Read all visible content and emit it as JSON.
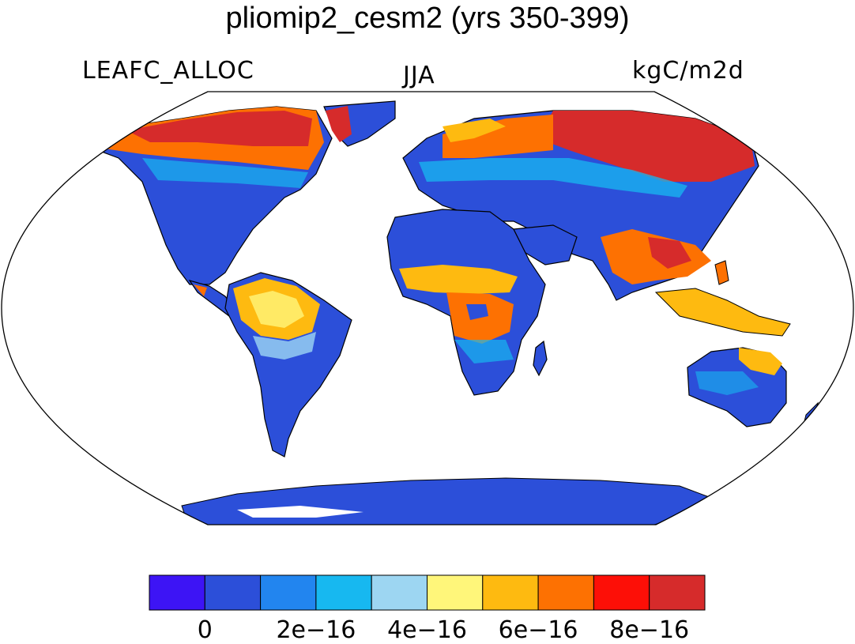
{
  "title": "pliomip2_cesm2 (yrs 350-399)",
  "subtitle_left": "LEAFC_ALLOC",
  "subtitle_center": "JJA",
  "subtitle_right": "kgC/m2d",
  "colorbar": {
    "colors": [
      "#3d14f5",
      "#2c4fd9",
      "#2285ef",
      "#17b8f0",
      "#9dd6f2",
      "#fff67a",
      "#feba10",
      "#fd7102",
      "#fd0f07",
      "#d62b2b"
    ],
    "labels": [
      "0",
      "2e−16",
      "4e−16",
      "6e−16",
      "8e−16"
    ]
  },
  "map": {
    "projection": "robinson",
    "ocean_color": "#ffffff",
    "region_colors": {
      "boreal": "#d62b2b",
      "arctic_orange": "#fd7102",
      "temperate": "#2c4fd9",
      "tropical": "#feba10",
      "transition": "#17b8f0"
    }
  }
}
